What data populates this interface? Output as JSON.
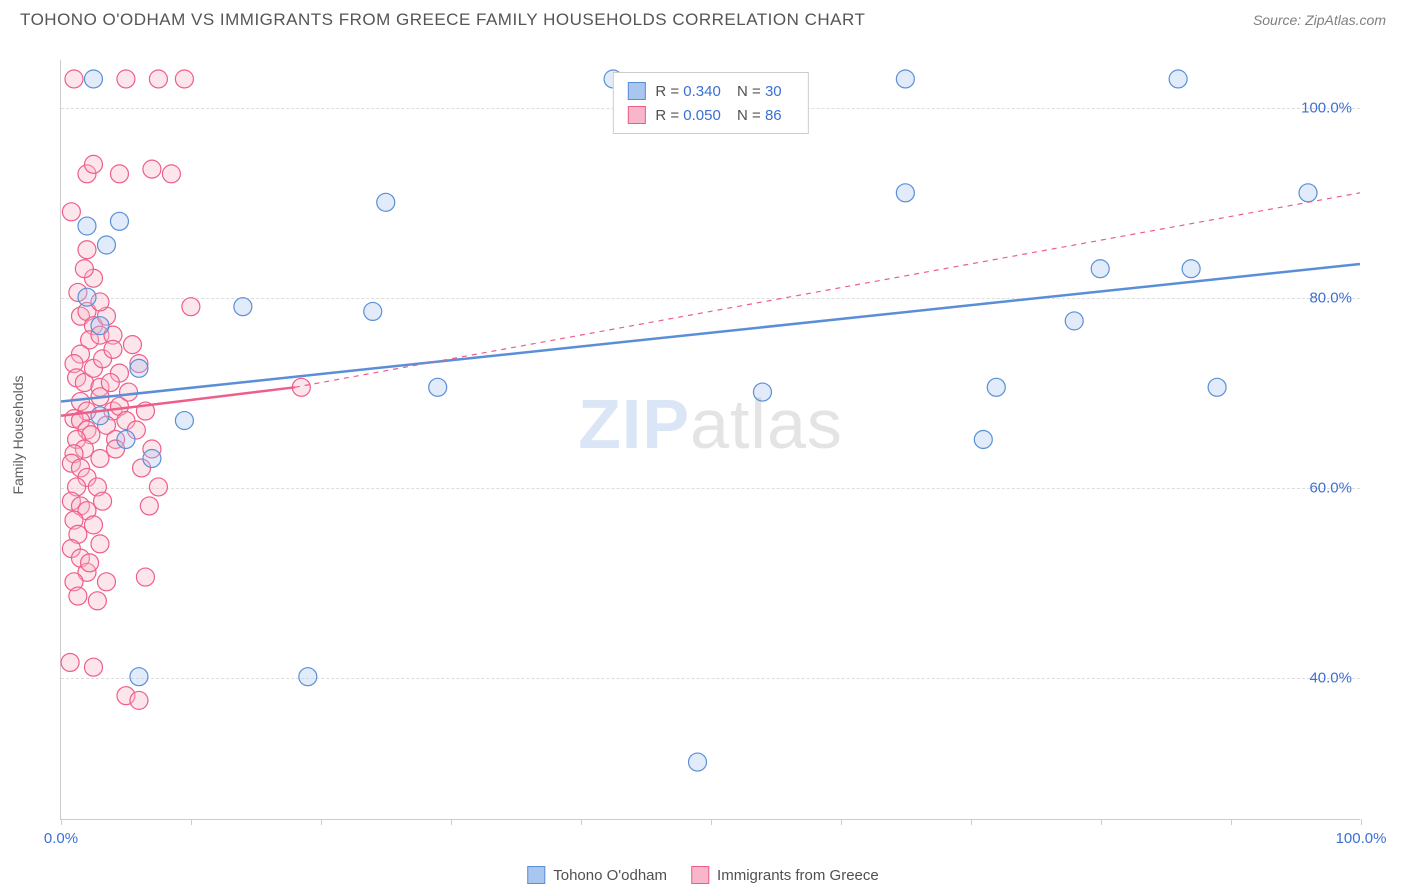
{
  "title": "TOHONO O'ODHAM VS IMMIGRANTS FROM GREECE FAMILY HOUSEHOLDS CORRELATION CHART",
  "source_label": "Source: ZipAtlas.com",
  "watermark": {
    "part1": "ZIP",
    "part2": "atlas"
  },
  "ylabel": "Family Households",
  "chart": {
    "type": "scatter",
    "xlim": [
      0,
      100
    ],
    "ylim": [
      25,
      105
    ],
    "y_ticks": [
      40,
      60,
      80,
      100
    ],
    "y_tick_labels": [
      "40.0%",
      "60.0%",
      "80.0%",
      "100.0%"
    ],
    "x_ticks": [
      0,
      50,
      100
    ],
    "x_tick_labels": [
      "0.0%",
      "",
      "100.0%"
    ],
    "x_minor_ticks": [
      0,
      10,
      20,
      30,
      40,
      50,
      60,
      70,
      80,
      90,
      100
    ],
    "grid_color": "#dddddd",
    "background_color": "#ffffff",
    "axis_color": "#cccccc",
    "tick_label_color": "#3b6fd8",
    "tick_fontsize": 15,
    "marker_radius": 9,
    "marker_stroke_width": 1.2,
    "marker_fill_opacity": 0.35,
    "trend_line_width": 2.5
  },
  "series": [
    {
      "name": "Tohono O'odham",
      "color_stroke": "#5a8fd8",
      "color_fill": "#a9c6ef",
      "R": "0.340",
      "N": "30",
      "trend": {
        "x1": 0,
        "y1": 69,
        "x2": 100,
        "y2": 83.5,
        "dashed": false
      },
      "points": [
        [
          2.5,
          103
        ],
        [
          4.5,
          88
        ],
        [
          3.5,
          85.5
        ],
        [
          2,
          80
        ],
        [
          14,
          79
        ],
        [
          24,
          78.5
        ],
        [
          6,
          72.5
        ],
        [
          9.5,
          67
        ],
        [
          3,
          67.5
        ],
        [
          5,
          65
        ],
        [
          7,
          63
        ],
        [
          19,
          40
        ],
        [
          29,
          70.5
        ],
        [
          42.5,
          103
        ],
        [
          49,
          31
        ],
        [
          54,
          70
        ],
        [
          65,
          91
        ],
        [
          65,
          103
        ],
        [
          71,
          65
        ],
        [
          72,
          70.5
        ],
        [
          78,
          77.5
        ],
        [
          80,
          83
        ],
        [
          86,
          103
        ],
        [
          87,
          83
        ],
        [
          89,
          70.5
        ],
        [
          96,
          91
        ],
        [
          25,
          90
        ],
        [
          6,
          40
        ],
        [
          3,
          77
        ],
        [
          2,
          87.5
        ]
      ]
    },
    {
      "name": "Immigrants from Greece",
      "color_stroke": "#ee5e8a",
      "color_fill": "#f7b6c9",
      "R": "0.050",
      "N": "86",
      "trend_solid": {
        "x1": 0,
        "y1": 67.5,
        "x2": 18,
        "y2": 70.5
      },
      "trend_dashed": {
        "x1": 18,
        "y1": 70.5,
        "x2": 100,
        "y2": 91
      },
      "points": [
        [
          1,
          103
        ],
        [
          5,
          103
        ],
        [
          7.5,
          103
        ],
        [
          2,
          93
        ],
        [
          2.5,
          94
        ],
        [
          4.5,
          93
        ],
        [
          7,
          93.5
        ],
        [
          0.8,
          89
        ],
        [
          1.3,
          80.5
        ],
        [
          1.5,
          78
        ],
        [
          2,
          78.5
        ],
        [
          2.5,
          77
        ],
        [
          2.2,
          75.5
        ],
        [
          3,
          76
        ],
        [
          1.5,
          74
        ],
        [
          1,
          73
        ],
        [
          1.2,
          71.5
        ],
        [
          1.8,
          71
        ],
        [
          2.5,
          72.5
        ],
        [
          3,
          70.5
        ],
        [
          1.5,
          69
        ],
        [
          2,
          68
        ],
        [
          1,
          67.2
        ],
        [
          1.5,
          67
        ],
        [
          2,
          66
        ],
        [
          2.3,
          65.5
        ],
        [
          1.2,
          65
        ],
        [
          1.8,
          64
        ],
        [
          1,
          63.5
        ],
        [
          0.8,
          62.5
        ],
        [
          1.5,
          62
        ],
        [
          2,
          61
        ],
        [
          1.2,
          60
        ],
        [
          0.8,
          58.5
        ],
        [
          1.5,
          58
        ],
        [
          2,
          57.5
        ],
        [
          1,
          56.5
        ],
        [
          1.3,
          55
        ],
        [
          0.8,
          53.5
        ],
        [
          1.5,
          52.5
        ],
        [
          2,
          51
        ],
        [
          1,
          50
        ],
        [
          6.5,
          50.5
        ],
        [
          1.3,
          48.5
        ],
        [
          0.7,
          41.5
        ],
        [
          2.5,
          41
        ],
        [
          5,
          38
        ],
        [
          6,
          37.5
        ],
        [
          3.5,
          78
        ],
        [
          4,
          76
        ],
        [
          3.2,
          73.5
        ],
        [
          4.5,
          72
        ],
        [
          3,
          69.5
        ],
        [
          4,
          68
        ],
        [
          3.5,
          66.5
        ],
        [
          4.2,
          65
        ],
        [
          3,
          63
        ],
        [
          10,
          79
        ],
        [
          8.5,
          93
        ],
        [
          9.5,
          103
        ],
        [
          2.8,
          60
        ],
        [
          3.2,
          58.5
        ],
        [
          2.5,
          56
        ],
        [
          3,
          54
        ],
        [
          2.2,
          52
        ],
        [
          3.5,
          50
        ],
        [
          2.8,
          48
        ],
        [
          4,
          74.5
        ],
        [
          3.8,
          71
        ],
        [
          4.5,
          68.5
        ],
        [
          5,
          67
        ],
        [
          4.2,
          64
        ],
        [
          5.5,
          75
        ],
        [
          6,
          73
        ],
        [
          5.2,
          70
        ],
        [
          6.5,
          68
        ],
        [
          5.8,
          66
        ],
        [
          7,
          64
        ],
        [
          6.2,
          62
        ],
        [
          7.5,
          60
        ],
        [
          6.8,
          58
        ],
        [
          18.5,
          70.5
        ],
        [
          2,
          85
        ],
        [
          2.5,
          82
        ],
        [
          1.8,
          83
        ],
        [
          3,
          79.5
        ]
      ]
    }
  ],
  "legend_bottom": {
    "series1_label": "Tohono O'odham",
    "series2_label": "Immigrants from Greece"
  },
  "legend_top": {
    "r_label": "R",
    "n_label": "N",
    "eq": "="
  }
}
